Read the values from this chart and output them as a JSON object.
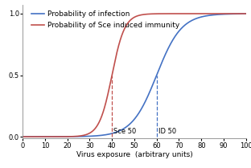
{
  "title": "",
  "xlabel": "Virus exposure  (arbitrary units)",
  "ylabel": "",
  "xlim": [
    0,
    100
  ],
  "ylim": [
    -0.015,
    1.07
  ],
  "xticks": [
    0,
    10,
    20,
    30,
    40,
    50,
    60,
    70,
    80,
    90,
    100
  ],
  "yticks": [
    0,
    0.5,
    1
  ],
  "blue_label": "Probability of infection",
  "red_label": "Probability of Sce induced immunity",
  "blue_midpoint": 60,
  "blue_steepness": 0.18,
  "red_midpoint": 40,
  "red_steepness": 0.35,
  "blue_color": "#4472C4",
  "red_color": "#C0504D",
  "vline_blue_x": 60,
  "vline_red_x": 40,
  "label_sce50": "Sce 50",
  "label_id50": "ID 50",
  "background_color": "#FFFFFF",
  "legend_fontsize": 6.5,
  "axis_fontsize": 6.5,
  "tick_fontsize": 6.0,
  "annotation_fontsize": 6.0
}
